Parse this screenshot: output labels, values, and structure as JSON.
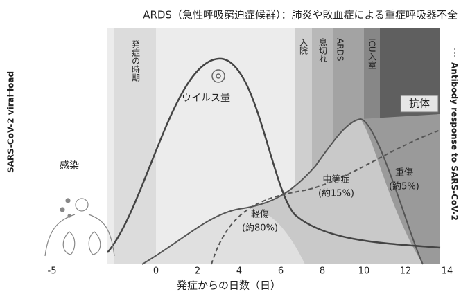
{
  "title": "ARDS（急性呼吸窮迫症候群）：肺炎や敗血症による重症呼吸器不全",
  "y_label_left": "SARS-CoV-2 viral load",
  "y_label_right": "Antibody response to SARS-CoV-2",
  "x_label": "発症からの日数（日）",
  "x_ticks": [
    -5,
    0,
    2,
    4,
    6,
    8,
    10,
    12,
    14
  ],
  "phases": {
    "onset": "発症の時期",
    "hospital": "入院",
    "breath": "息切れ",
    "ards": "ARDS",
    "icu": "ICU入室"
  },
  "labels": {
    "antibody": "抗体",
    "virus": "ウイルス量",
    "infection": "感染"
  },
  "severity": [
    {
      "name": "軽傷",
      "share": "(約80%)"
    },
    {
      "name": "中等症",
      "share": "(約15%)"
    },
    {
      "name": "重傷",
      "share": "(約5%)"
    }
  ]
}
